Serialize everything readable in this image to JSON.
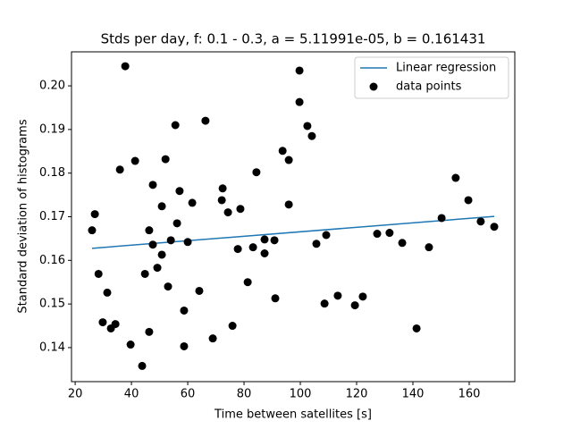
{
  "chart_data": {
    "type": "scatter",
    "title": "Stds per day, f: 0.1 - 0.3, a = 5.11991e-05, b = 0.161431",
    "x_label": "Time between satellites [s]",
    "y_label": "Standard deviation of histograms",
    "xlim": [
      18.7,
      176.2
    ],
    "ylim": [
      0.1322,
      0.2078
    ],
    "xticks": [
      20,
      40,
      60,
      80,
      100,
      120,
      140,
      160
    ],
    "yticks": [
      0.14,
      0.15,
      0.16,
      0.17,
      0.18,
      0.19,
      {
        "value": 0.2,
        "label": "0.20"
      }
    ],
    "legend": "upper right",
    "series": [
      {
        "name": "Linear regression",
        "kind": "line",
        "color": "#1f77b4",
        "x": [
          26.0,
          168.9
        ],
        "values": [
          0.16276,
          0.17008
        ]
      },
      {
        "name": "data points",
        "kind": "points",
        "color": "#000000",
        "x": [
          26.0,
          27.0,
          28.3,
          29.8,
          31.4,
          32.7,
          34.3,
          35.9,
          37.8,
          39.7,
          41.3,
          43.8,
          44.8,
          46.3,
          46.3,
          47.6,
          47.6,
          49.2,
          50.8,
          50.8,
          52.1,
          53.0,
          54.0,
          55.6,
          56.2,
          57.1,
          58.7,
          58.7,
          60.0,
          61.6,
          64.1,
          66.3,
          68.9,
          72.1,
          72.4,
          74.3,
          75.9,
          77.8,
          78.7,
          81.3,
          83.2,
          84.4,
          87.3,
          87.3,
          90.8,
          91.1,
          93.7,
          95.9,
          95.9,
          99.7,
          99.7,
          102.5,
          104.1,
          105.7,
          108.6,
          109.2,
          113.3,
          119.4,
          122.2,
          127.3,
          131.7,
          136.2,
          141.3,
          145.7,
          150.2,
          155.2,
          159.7,
          164.1,
          168.9
        ],
        "values": [
          0.1669,
          0.1706,
          0.1569,
          0.1458,
          0.1526,
          0.1444,
          0.1454,
          0.1808,
          0.2045,
          0.1407,
          0.1828,
          0.1358,
          0.1569,
          0.1669,
          0.1436,
          0.1773,
          0.1636,
          0.1583,
          0.1613,
          0.1724,
          0.1832,
          0.154,
          0.1646,
          0.191,
          0.1685,
          0.1759,
          0.1485,
          0.1403,
          0.1642,
          0.1732,
          0.153,
          0.192,
          0.1421,
          0.1738,
          0.1765,
          0.171,
          0.145,
          0.1626,
          0.1718,
          0.155,
          0.163,
          0.1802,
          0.1648,
          0.1616,
          0.1646,
          0.1513,
          0.1851,
          0.183,
          0.1728,
          0.2035,
          0.1963,
          0.1908,
          0.1885,
          0.1638,
          0.1501,
          0.1658,
          0.1519,
          0.1497,
          0.1517,
          0.1661,
          0.1663,
          0.164,
          0.1444,
          0.163,
          0.1697,
          0.1789,
          0.1738,
          0.1689,
          0.1677
        ]
      }
    ]
  }
}
